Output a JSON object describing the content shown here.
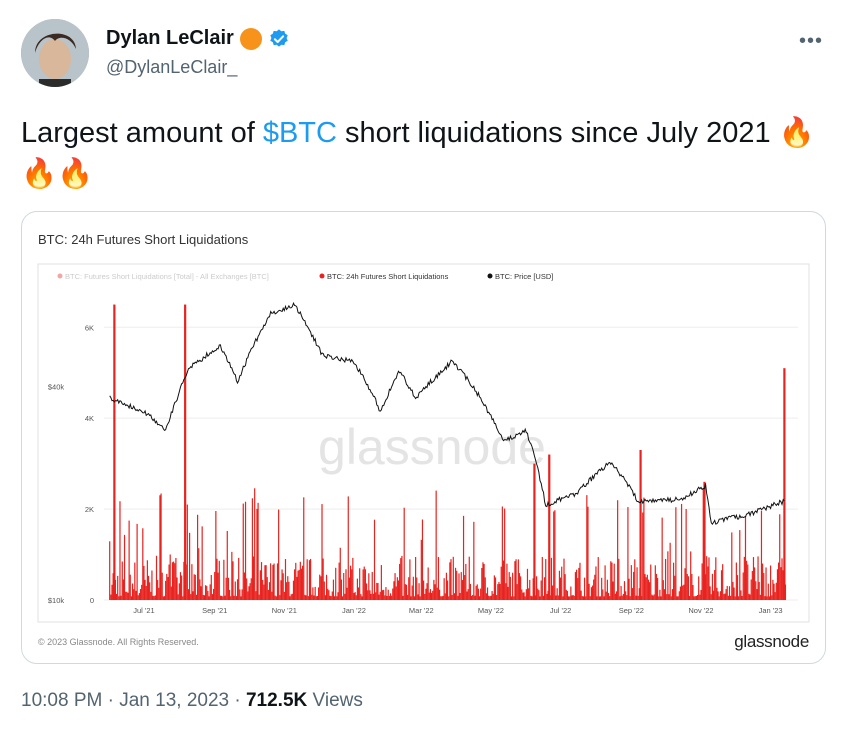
{
  "author": {
    "display_name": "Dylan LeClair",
    "handle": "@DylanLeClair_",
    "badge_color": "#f7931a",
    "verified_color": "#1d9bf0"
  },
  "more_label": "•••",
  "tweet": {
    "text_before": "Largest amount of ",
    "cashtag": "$BTC",
    "text_after": " short liquidations since July 2021 ",
    "emojis": "🔥🔥🔥"
  },
  "chart_card": {
    "copyright": "© 2023 Glassnode. All Rights Reserved.",
    "brand": "glassnode",
    "watermark": "glassnode"
  },
  "chart_data": {
    "type": "bar",
    "title": "BTC: 24h Futures Short Liquidations",
    "legend": [
      {
        "name": "BTC: Futures Short Liquidations [Total] - All Exchanges [BTC]",
        "color": "#f4a6a6"
      },
      {
        "name": "BTC: 24h Futures Short Liquidations",
        "color": "#e8231f"
      },
      {
        "name": "BTC: Price [USD]",
        "color": "#111111"
      }
    ],
    "legend_position": "top",
    "x_ticks": [
      "Jul '21",
      "Sep '21",
      "Nov '21",
      "Jan '22",
      "Mar '22",
      "May '22",
      "Jul '22",
      "Sep '22",
      "Nov '22",
      "Jan '23"
    ],
    "left_axis_ticks": [
      "$10k",
      "$40k"
    ],
    "right_axis_ticks": [
      "0",
      "2K",
      "4K",
      "6K"
    ],
    "ylim_liquidations": [
      0,
      6600
    ],
    "ylim_price": [
      10000,
      70000
    ],
    "price_scale": "log",
    "liquidation_spikes": [
      {
        "date": "2021-06-05",
        "value": 6500
      },
      {
        "date": "2021-08-06",
        "value": 6500
      },
      {
        "date": "2022-06-08",
        "value": 3000
      },
      {
        "date": "2022-06-21",
        "value": 3200
      },
      {
        "date": "2022-09-09",
        "value": 3300
      },
      {
        "date": "2022-11-04",
        "value": 2600
      },
      {
        "date": "2023-01-13",
        "value": 5100
      }
    ],
    "price_series": [
      {
        "date": "2021-06-01",
        "value": 37000
      },
      {
        "date": "2021-07-01",
        "value": 34000
      },
      {
        "date": "2021-07-20",
        "value": 30000
      },
      {
        "date": "2021-08-10",
        "value": 45000
      },
      {
        "date": "2021-09-06",
        "value": 52000
      },
      {
        "date": "2021-09-21",
        "value": 41000
      },
      {
        "date": "2021-10-20",
        "value": 64000
      },
      {
        "date": "2021-11-10",
        "value": 68000
      },
      {
        "date": "2021-12-04",
        "value": 49000
      },
      {
        "date": "2022-01-01",
        "value": 47000
      },
      {
        "date": "2022-01-24",
        "value": 34000
      },
      {
        "date": "2022-02-10",
        "value": 44000
      },
      {
        "date": "2022-02-24",
        "value": 37000
      },
      {
        "date": "2022-03-28",
        "value": 47000
      },
      {
        "date": "2022-04-15",
        "value": 40000
      },
      {
        "date": "2022-05-12",
        "value": 28000
      },
      {
        "date": "2022-06-01",
        "value": 30000
      },
      {
        "date": "2022-06-18",
        "value": 18500
      },
      {
        "date": "2022-07-15",
        "value": 20000
      },
      {
        "date": "2022-08-14",
        "value": 24500
      },
      {
        "date": "2022-09-07",
        "value": 19000
      },
      {
        "date": "2022-10-15",
        "value": 19200
      },
      {
        "date": "2022-11-05",
        "value": 21000
      },
      {
        "date": "2022-11-10",
        "value": 16500
      },
      {
        "date": "2022-12-15",
        "value": 17500
      },
      {
        "date": "2023-01-13",
        "value": 19000
      }
    ]
  },
  "footer": {
    "time": "10:08 PM",
    "date": "Jan 13, 2023",
    "separator": "·",
    "views_count": "712.5K",
    "views_label": "Views"
  }
}
